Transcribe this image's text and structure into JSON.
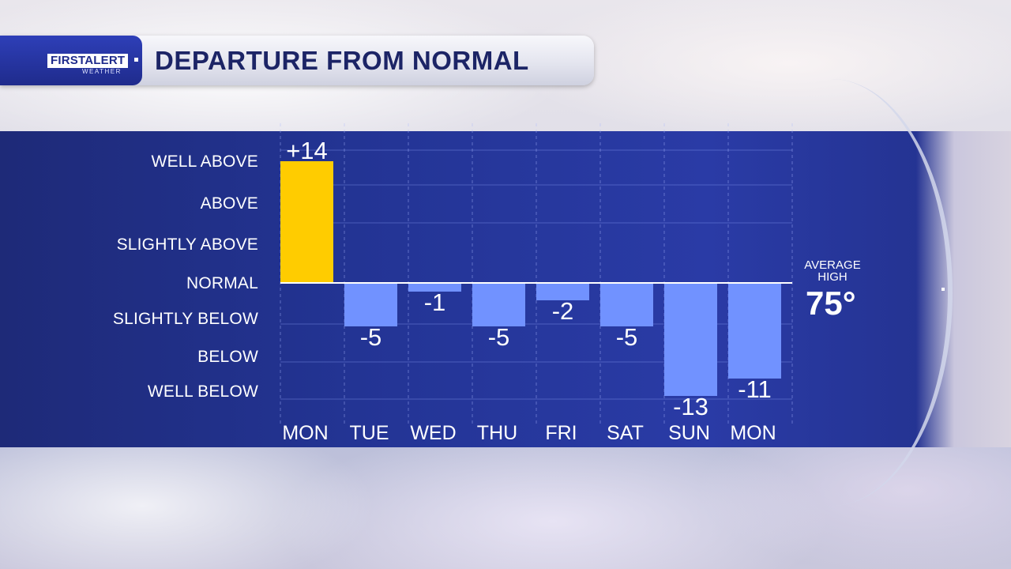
{
  "header": {
    "logo_first": "FIRST",
    "logo_alert": "ALERT",
    "logo_sub": "WEATHER",
    "title": "DEPARTURE FROM NORMAL"
  },
  "average": {
    "label_line1": "AVERAGE",
    "label_line2": "HIGH",
    "value": "75°"
  },
  "y_categories": [
    {
      "label": "WELL ABOVE"
    },
    {
      "label": "ABOVE"
    },
    {
      "label": "SLIGHTLY ABOVE"
    },
    {
      "label": "NORMAL"
    },
    {
      "label": "SLIGHTLY BELOW"
    },
    {
      "label": "BELOW"
    },
    {
      "label": "WELL BELOW"
    }
  ],
  "colors": {
    "above": "#ffcc00",
    "below": "#7192ff",
    "panel": "#23339a"
  },
  "chart_data": {
    "type": "bar",
    "title": "DEPARTURE FROM NORMAL",
    "categories": [
      "MON",
      "TUE",
      "WED",
      "THU",
      "FRI",
      "SAT",
      "SUN",
      "MON"
    ],
    "values": [
      14,
      -5,
      -1,
      -5,
      -2,
      -5,
      -13,
      -11
    ],
    "value_labels": [
      "+14",
      "-5",
      "-1",
      "-5",
      "-2",
      "-5",
      "-13",
      "-11"
    ],
    "ylim": [
      -14,
      14
    ],
    "baseline": 0,
    "grid": true
  }
}
